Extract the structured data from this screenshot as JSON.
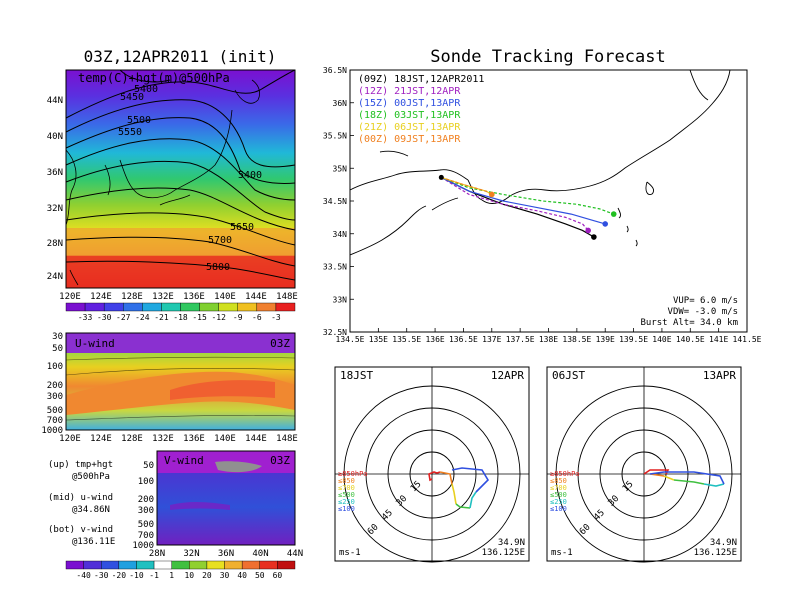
{
  "left_title": "03Z,12APR2011 (init)",
  "right_title": "Sonde Tracking Forecast",
  "map500": {
    "label": "temp(C)+hgt(m)@500hPa",
    "lat_ticks": [
      "44N",
      "40N",
      "36N",
      "32N",
      "28N",
      "24N"
    ],
    "lon_ticks": [
      "120E",
      "124E",
      "128E",
      "132E",
      "136E",
      "140E",
      "144E",
      "148E"
    ],
    "contour_labels": [
      "5400",
      "5450",
      "5500",
      "5550",
      "5400",
      "5650",
      "5700",
      "5800"
    ],
    "colorbar": [
      "-33",
      "-30",
      "-27",
      "-24",
      "-21",
      "-18",
      "-15",
      "-12",
      "-9",
      "-6",
      "-3"
    ]
  },
  "uwind": {
    "label": "U-wind",
    "time": "03Z",
    "y_ticks": [
      "30",
      "50",
      "100",
      "200",
      "300",
      "500",
      "700",
      "1000"
    ],
    "x_ticks": [
      "120E",
      "124E",
      "128E",
      "132E",
      "136E",
      "140E",
      "144E",
      "148E"
    ]
  },
  "vwind": {
    "label": "V-wind",
    "time": "03Z",
    "y_ticks": [
      "50",
      "100",
      "200",
      "300",
      "500",
      "700",
      "1000"
    ],
    "x_ticks": [
      "28N",
      "32N",
      "36N",
      "40N",
      "44N"
    ],
    "colorbar": [
      "-40",
      "-30",
      "-20",
      "-10",
      "-1",
      "1",
      "10",
      "20",
      "30",
      "40",
      "50",
      "60"
    ]
  },
  "notes": [
    {
      "label": "(up) tmp+hgt",
      "sub": "@500hPa"
    },
    {
      "label": "(mid) u-wind",
      "sub": "@34.86N"
    },
    {
      "label": "(bot) v-wind",
      "sub": "@136.11E"
    }
  ],
  "track": {
    "legend": [
      {
        "text": "(09Z)  18JST,12APR2011",
        "color": "#000000"
      },
      {
        "text": "(12Z)  21JST,12APR",
        "color": "#a020c0"
      },
      {
        "text": "(15Z)  00JST,13APR",
        "color": "#3050e0"
      },
      {
        "text": "(18Z)  03JST,13APR",
        "color": "#20c020"
      },
      {
        "text": "(21Z)  06JST,13APR",
        "color": "#e8d020"
      },
      {
        "text": "(00Z)  09JST,13APR",
        "color": "#f08020"
      }
    ],
    "lat_ticks": [
      "36.5N",
      "36N",
      "35.5N",
      "35N",
      "34.5N",
      "34N",
      "33.5N",
      "33N",
      "32.5N"
    ],
    "lon_ticks": [
      "134.5E",
      "135E",
      "135.5E",
      "136E",
      "136.5E",
      "137E",
      "137.5E",
      "138E",
      "138.5E",
      "139E",
      "139.5E",
      "140E",
      "140.5E",
      "141E",
      "141.5E"
    ],
    "params": [
      "VUP=  6.0  m/s",
      "VDW= -3.0  m/s",
      "Burst Alt=  34.0  km"
    ]
  },
  "chart_data": [
    {
      "type": "line",
      "title": "Sonde Tracking Forecast",
      "xlim": [
        134.5,
        141.5
      ],
      "ylim": [
        32.5,
        36.5
      ],
      "series": [
        {
          "name": "(09Z)  18JST,12APR2011",
          "color": "#000000",
          "x": [
            136.11,
            136.6,
            137.2,
            137.8,
            138.3,
            138.6,
            138.8
          ],
          "y": [
            34.86,
            34.65,
            34.45,
            34.3,
            34.15,
            34.05,
            33.95
          ]
        },
        {
          "name": "(12Z)  21JST,12APR",
          "color": "#a020c0",
          "x": [
            136.11,
            136.6,
            137.2,
            137.8,
            138.3,
            138.6,
            138.7
          ],
          "y": [
            34.86,
            34.6,
            34.45,
            34.35,
            34.25,
            34.15,
            34.05
          ]
        },
        {
          "name": "(15Z)  00JST,13APR",
          "color": "#3050e0",
          "x": [
            136.11,
            136.6,
            137.2,
            137.8,
            138.4,
            138.8,
            139.0
          ],
          "y": [
            34.86,
            34.65,
            34.5,
            34.4,
            34.3,
            34.2,
            34.15
          ]
        },
        {
          "name": "(18Z)  03JST,13APR",
          "color": "#20c020",
          "x": [
            136.11,
            136.6,
            137.2,
            137.9,
            138.5,
            138.9,
            139.15
          ],
          "y": [
            34.86,
            34.7,
            34.6,
            34.5,
            34.45,
            34.38,
            34.3
          ]
        },
        {
          "name": "(21Z)  06JST,13APR",
          "color": "#e8d020",
          "x": [
            136.11,
            136.5,
            136.9,
            137.0
          ],
          "y": [
            34.86,
            34.75,
            34.65,
            34.6
          ]
        },
        {
          "name": "(00Z)  09JST,13APR",
          "color": "#f08020",
          "x": [
            136.11,
            136.5,
            136.9,
            137.0
          ],
          "y": [
            34.86,
            34.75,
            34.65,
            34.6
          ]
        }
      ]
    }
  ],
  "hodo1": {
    "time": "18JST",
    "date": "12APR",
    "rings": [
      "15",
      "30",
      "45",
      "60"
    ],
    "levels": [
      {
        "t": "≥850hPa",
        "c": "#e02020"
      },
      {
        "t": "≤850",
        "c": "#f08020"
      },
      {
        "t": "≤700",
        "c": "#e8d020"
      },
      {
        "t": "≤500",
        "c": "#40c040"
      },
      {
        "t": "≤250",
        "c": "#20c0c0"
      },
      {
        "t": "≤100",
        "c": "#3050e0"
      }
    ],
    "unit": "ms-1",
    "lat": "34.9N",
    "lon": "136.125E"
  },
  "hodo2": {
    "time": "06JST",
    "date": "13APR",
    "rings": [
      "15",
      "30",
      "45",
      "60"
    ],
    "levels": [
      {
        "t": "≥850hPa",
        "c": "#e02020"
      },
      {
        "t": "≤850",
        "c": "#f08020"
      },
      {
        "t": "≤700",
        "c": "#e8d020"
      },
      {
        "t": "≤500",
        "c": "#40c040"
      },
      {
        "t": "≤250",
        "c": "#20c0c0"
      },
      {
        "t": "≤100",
        "c": "#3050e0"
      }
    ],
    "unit": "ms-1",
    "lat": "34.9N",
    "lon": "136.125E"
  }
}
